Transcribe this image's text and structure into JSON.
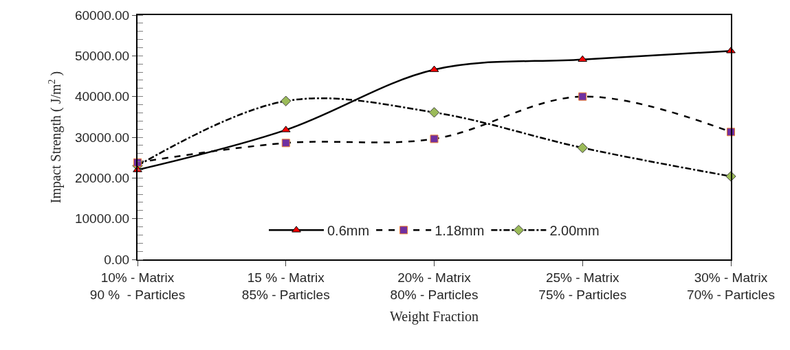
{
  "chart_data": {
    "type": "line",
    "xlabel": "Weight Fraction",
    "ylabel": "Impact Strength ( J/m$^{2}$ )",
    "categories": [
      "10% - Matrix\n90 %  - Particles",
      "15 % - Matrix\n85% - Particles",
      "20% - Matrix\n80% - Particles",
      "25% - Matrix\n75% - Particles",
      "30% - Matrix\n70% - Particles"
    ],
    "series": [
      {
        "name": "0.6mm",
        "color": "#ff0000",
        "values": [
          22000,
          31800,
          46600,
          49100,
          51200
        ],
        "marker": "triangle",
        "line_style": "solid"
      },
      {
        "name": "1.18mm",
        "color": "#7030a0",
        "values": [
          23800,
          28600,
          29600,
          40000,
          31300
        ],
        "marker": "square",
        "line_style": "dashed"
      },
      {
        "name": "2.00mm",
        "color": "#9bbb59",
        "values": [
          23000,
          38900,
          36100,
          27400,
          20400
        ],
        "marker": "diamond",
        "line_style": "dashdot"
      }
    ],
    "ylim": [
      0,
      60000
    ],
    "yticks": [
      {
        "value": 0,
        "label": "0.00"
      },
      {
        "value": 10000,
        "label": "10000.00"
      },
      {
        "value": 20000,
        "label": "20000.00"
      },
      {
        "value": 30000,
        "label": "30000.00"
      },
      {
        "value": 40000,
        "label": "40000.00"
      },
      {
        "value": 50000,
        "label": "50000.00"
      },
      {
        "value": 60000,
        "label": "60000.00"
      }
    ],
    "legend": "bottom"
  }
}
